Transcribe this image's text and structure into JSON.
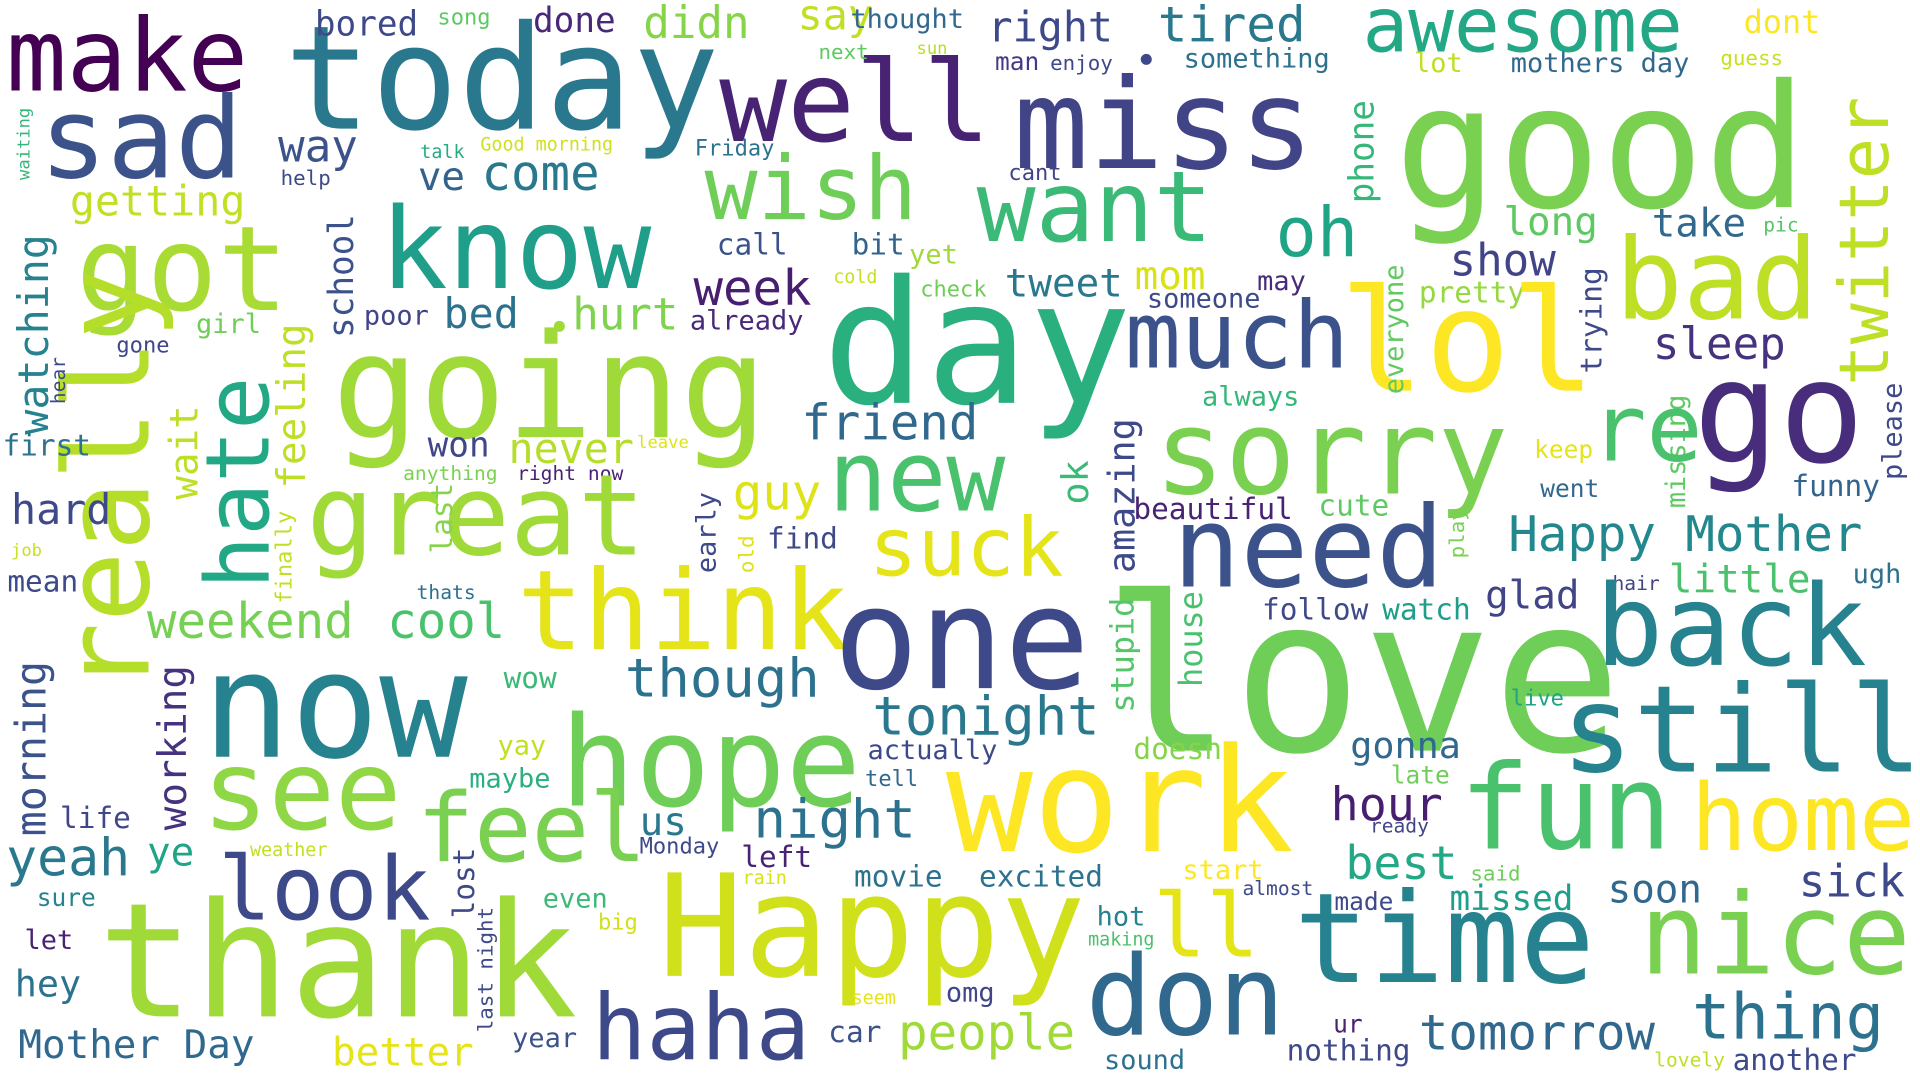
{
  "words": [
    {
      "text": "make",
      "color": "#440154"
    },
    {
      "text": "today",
      "color": "#2a788e"
    },
    {
      "text": "sad",
      "color": "#3b528b"
    },
    {
      "text": "well",
      "color": "#482374"
    },
    {
      "text": "miss",
      "color": "#414487"
    },
    {
      "text": "good",
      "color": "#7ad151"
    },
    {
      "text": "awesome",
      "color": "#22a884"
    },
    {
      "text": "tired",
      "color": "#2a788e"
    },
    {
      "text": "bored",
      "color": "#3e4989"
    },
    {
      "text": "song",
      "color": "#5ec962"
    },
    {
      "text": "done",
      "color": "#482878"
    },
    {
      "text": "didn",
      "color": "#86d549"
    },
    {
      "text": "say",
      "color": "#c2df23"
    },
    {
      "text": "thought",
      "color": "#31688e"
    },
    {
      "text": "right",
      "color": "#3e4989"
    },
    {
      "text": "something",
      "color": "#2c728e"
    },
    {
      "text": "dont",
      "color": "#fde725"
    },
    {
      "text": "next",
      "color": "#5ec962"
    },
    {
      "text": "sun",
      "color": "#b5de2b"
    },
    {
      "text": "man",
      "color": "#443983"
    },
    {
      "text": "enjoy",
      "color": "#3e4989"
    },
    {
      "text": "lot",
      "color": "#bddf26"
    },
    {
      "text": "mothers day",
      "color": "#31688e"
    },
    {
      "text": "guess",
      "color": "#c8e020"
    },
    {
      "text": "twitter",
      "color": "#bddf26"
    },
    {
      "text": "waiting",
      "color": "#35b779"
    },
    {
      "text": "way",
      "color": "#3b528b"
    },
    {
      "text": "talk",
      "color": "#25ab82"
    },
    {
      "text": "Good morning",
      "color": "#d0e11c"
    },
    {
      "text": "Friday",
      "color": "#2c728e"
    },
    {
      "text": "help",
      "color": "#3e4989"
    },
    {
      "text": "cant",
      "color": "#414487"
    },
    {
      "text": "phone",
      "color": "#35b779"
    },
    {
      "text": "wish",
      "color": "#6ece58"
    },
    {
      "text": "want",
      "color": "#3aba76"
    },
    {
      "text": "oh",
      "color": "#20a486"
    },
    {
      "text": "getting",
      "color": "#c2df23"
    },
    {
      "text": "got",
      "color": "#a8db34"
    },
    {
      "text": "know",
      "color": "#1f9e89"
    },
    {
      "text": "ve",
      "color": "#33638d"
    },
    {
      "text": "come",
      "color": "#2a788e"
    },
    {
      "text": "school",
      "color": "#3b528b"
    },
    {
      "text": "call",
      "color": "#3b528b"
    },
    {
      "text": "bit",
      "color": "#33638d"
    },
    {
      "text": "yet",
      "color": "#a0da39"
    },
    {
      "text": "long",
      "color": "#5ec962"
    },
    {
      "text": "take",
      "color": "#31688e"
    },
    {
      "text": "pic",
      "color": "#54c568"
    },
    {
      "text": "bad",
      "color": "#bddf26"
    },
    {
      "text": "cold",
      "color": "#cae11f"
    },
    {
      "text": "check",
      "color": "#6ece58"
    },
    {
      "text": "tweet",
      "color": "#2a788e"
    },
    {
      "text": "mom",
      "color": "#d8e219"
    },
    {
      "text": "show",
      "color": "#414487"
    },
    {
      "text": "pretty",
      "color": "#95d840"
    },
    {
      "text": "trying",
      "color": "#3e4989"
    },
    {
      "text": "day",
      "color": "#2ab07f"
    },
    {
      "text": "lol",
      "color": "#fde725"
    },
    {
      "text": "week",
      "color": "#481f70"
    },
    {
      "text": "someone",
      "color": "#3e4989"
    },
    {
      "text": "may",
      "color": "#472c7a"
    },
    {
      "text": "everyone",
      "color": "#60ca60"
    },
    {
      "text": "watching",
      "color": "#26828e"
    },
    {
      "text": "girl",
      "color": "#6ece58"
    },
    {
      "text": "poor",
      "color": "#414487"
    },
    {
      "text": "bed",
      "color": "#2c728e"
    },
    {
      "text": "hurt",
      "color": "#7fd34e"
    },
    {
      "text": "already",
      "color": "#482878"
    },
    {
      "text": "going",
      "color": "#a0da39"
    },
    {
      "text": "much",
      "color": "#3b528b"
    },
    {
      "text": "sleep",
      "color": "#46327e"
    },
    {
      "text": "go",
      "color": "#472d7b"
    },
    {
      "text": "gone",
      "color": "#404688"
    },
    {
      "text": "really",
      "color": "#b5de2b"
    },
    {
      "text": "hate",
      "color": "#22a884"
    },
    {
      "text": "feeling",
      "color": "#bddf26"
    },
    {
      "text": "always",
      "color": "#35b779"
    },
    {
      "text": "missing",
      "color": "#5ec962"
    },
    {
      "text": "please",
      "color": "#3e4989"
    },
    {
      "text": "hear",
      "color": "#3e4989"
    },
    {
      "text": "friend",
      "color": "#31688e"
    },
    {
      "text": "sorry",
      "color": "#7ad151"
    },
    {
      "text": "re",
      "color": "#4ac16d"
    },
    {
      "text": "first",
      "color": "#2c728e"
    },
    {
      "text": "won",
      "color": "#404688"
    },
    {
      "text": "never",
      "color": "#b5de2b"
    },
    {
      "text": "leave",
      "color": "#dde318"
    },
    {
      "text": "new",
      "color": "#4ac16d"
    },
    {
      "text": "keep",
      "color": "#e5e419"
    },
    {
      "text": "anything",
      "color": "#7ad151"
    },
    {
      "text": "right now",
      "color": "#482374"
    },
    {
      "text": "wait",
      "color": "#bddf26"
    },
    {
      "text": "great",
      "color": "#a0da39"
    },
    {
      "text": "guy",
      "color": "#dde318"
    },
    {
      "text": "amazing",
      "color": "#3e4989"
    },
    {
      "text": "went",
      "color": "#31688e"
    },
    {
      "text": "funny",
      "color": "#32648e"
    },
    {
      "text": "hard",
      "color": "#3e4989"
    },
    {
      "text": "last",
      "color": "#86d549"
    },
    {
      "text": "ok",
      "color": "#3aba76"
    },
    {
      "text": "beautiful",
      "color": "#482374"
    },
    {
      "text": "cute",
      "color": "#5ec962"
    },
    {
      "text": "Happy Mother",
      "color": "#23888e"
    },
    {
      "text": "job",
      "color": "#c8e020"
    },
    {
      "text": "finally",
      "color": "#c2df23"
    },
    {
      "text": "find",
      "color": "#3e4989"
    },
    {
      "text": "early",
      "color": "#3e4989"
    },
    {
      "text": "old",
      "color": "#dde318"
    },
    {
      "text": "suck",
      "color": "#e5e419"
    },
    {
      "text": "need",
      "color": "#3b528b"
    },
    {
      "text": "play",
      "color": "#7ad151"
    },
    {
      "text": "little",
      "color": "#4ac16d"
    },
    {
      "text": "hair",
      "color": "#414487"
    },
    {
      "text": "ugh",
      "color": "#2d718e"
    },
    {
      "text": "mean",
      "color": "#3e4989"
    },
    {
      "text": "thats",
      "color": "#2c728e"
    },
    {
      "text": "think",
      "color": "#e5e419"
    },
    {
      "text": "glad",
      "color": "#414487"
    },
    {
      "text": "follow",
      "color": "#3e4989"
    },
    {
      "text": "watch",
      "color": "#1f9e89"
    },
    {
      "text": "one",
      "color": "#3e4989"
    },
    {
      "text": "love",
      "color": "#6ece58"
    },
    {
      "text": "back",
      "color": "#26828e"
    },
    {
      "text": "weekend",
      "color": "#75d054"
    },
    {
      "text": "cool",
      "color": "#4ac16d"
    },
    {
      "text": "morning",
      "color": "#3b528b"
    },
    {
      "text": "stupid",
      "color": "#54c568"
    },
    {
      "text": "house",
      "color": "#4ac16d"
    },
    {
      "text": "working",
      "color": "#46327e"
    },
    {
      "text": "now",
      "color": "#26828e"
    },
    {
      "text": "though",
      "color": "#2c728e"
    },
    {
      "text": "wow",
      "color": "#3aba76"
    },
    {
      "text": "still",
      "color": "#26828e"
    },
    {
      "text": "tonight",
      "color": "#2a788e"
    },
    {
      "text": "live",
      "color": "#20a486"
    },
    {
      "text": "hope",
      "color": "#6ece58"
    },
    {
      "text": "actually",
      "color": "#3e4989"
    },
    {
      "text": "gonna",
      "color": "#31688e"
    },
    {
      "text": "doesn",
      "color": "#86d549"
    },
    {
      "text": "yay",
      "color": "#c2df23"
    },
    {
      "text": "see",
      "color": "#8fd744"
    },
    {
      "text": "tell",
      "color": "#31688e"
    },
    {
      "text": "late",
      "color": "#6ece58"
    },
    {
      "text": "maybe",
      "color": "#2ab07f"
    },
    {
      "text": "work",
      "color": "#fde725"
    },
    {
      "text": "fun",
      "color": "#4ac16d"
    },
    {
      "text": "home",
      "color": "#fde725"
    },
    {
      "text": "life",
      "color": "#404688"
    },
    {
      "text": "us",
      "color": "#2a788e"
    },
    {
      "text": "night",
      "color": "#2c728e"
    },
    {
      "text": "hour",
      "color": "#481f70"
    },
    {
      "text": "feel",
      "color": "#7ad151"
    },
    {
      "text": "ready",
      "color": "#404688"
    },
    {
      "text": "yeah",
      "color": "#2a788e"
    },
    {
      "text": "look",
      "color": "#3e4989"
    },
    {
      "text": "Monday",
      "color": "#3e4989"
    },
    {
      "text": "left",
      "color": "#482374"
    },
    {
      "text": "weather",
      "color": "#c2df23"
    },
    {
      "text": "best",
      "color": "#22a884"
    },
    {
      "text": "ye",
      "color": "#20a486"
    },
    {
      "text": "lost",
      "color": "#3e4989"
    },
    {
      "text": "start",
      "color": "#fde725"
    },
    {
      "text": "said",
      "color": "#6ece58"
    },
    {
      "text": "sick",
      "color": "#3e4989"
    },
    {
      "text": "soon",
      "color": "#31688e"
    },
    {
      "text": "movie",
      "color": "#2c728e"
    },
    {
      "text": "excited",
      "color": "#2c728e"
    },
    {
      "text": "almost",
      "color": "#3e4989"
    },
    {
      "text": "rain",
      "color": "#d8e219"
    },
    {
      "text": "sure",
      "color": "#26828e"
    },
    {
      "text": "even",
      "color": "#3aba76"
    },
    {
      "text": "made",
      "color": "#3e4989"
    },
    {
      "text": "missed",
      "color": "#1f9e89"
    },
    {
      "text": "Happy",
      "color": "#d0e11c"
    },
    {
      "text": "ll",
      "color": "#e5e419"
    },
    {
      "text": "big",
      "color": "#d0e11c"
    },
    {
      "text": "hot",
      "color": "#26828e"
    },
    {
      "text": "making",
      "color": "#4ac16d"
    },
    {
      "text": "nice",
      "color": "#7ad151"
    },
    {
      "text": "let",
      "color": "#482374"
    },
    {
      "text": "thank",
      "color": "#a0da39"
    },
    {
      "text": "time",
      "color": "#26828e"
    },
    {
      "text": "hey",
      "color": "#2c728e"
    },
    {
      "text": "last night",
      "color": "#3e4989"
    },
    {
      "text": "seem",
      "color": "#e5e419"
    },
    {
      "text": "omg",
      "color": "#404688"
    },
    {
      "text": "don",
      "color": "#31688e"
    },
    {
      "text": "ur",
      "color": "#482374"
    },
    {
      "text": "thing",
      "color": "#2c728e"
    },
    {
      "text": "tomorrow",
      "color": "#31688e"
    },
    {
      "text": "haha",
      "color": "#3e4989"
    },
    {
      "text": "car",
      "color": "#3b528b"
    },
    {
      "text": "people",
      "color": "#a0da39"
    },
    {
      "text": "Mother Day",
      "color": "#31688e"
    },
    {
      "text": "better",
      "color": "#e5e419"
    },
    {
      "text": "year",
      "color": "#3b528b"
    },
    {
      "text": "sound",
      "color": "#2c728e"
    },
    {
      "text": "nothing",
      "color": "#3e4989"
    },
    {
      "text": "lovely",
      "color": "#bddf26"
    },
    {
      "text": "another",
      "color": "#3e4989"
    }
  ],
  "dots": [
    {
      "color": "#3e4989"
    },
    {
      "color": "#a0da39"
    }
  ]
}
